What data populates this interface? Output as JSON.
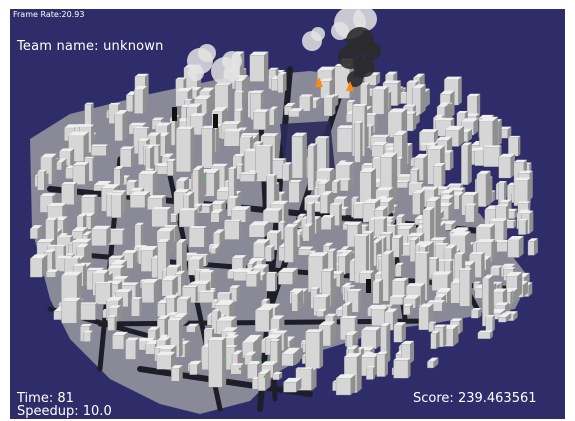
{
  "hud": {
    "frame_rate_label": "Frame Rate:",
    "frame_rate_value": "20.93",
    "team_label": "Team name:",
    "team_value": "unknown",
    "time_label": "Time:",
    "time_value": "81",
    "speedup_label": "Speedup:",
    "speedup_value": "10.0",
    "score_label": "Score:",
    "score_value": "239.463561"
  },
  "colors": {
    "sky": "#2f2c6a",
    "ground": "#9a9aa0",
    "road": "#1e1e28",
    "building_light": "#d6d6d6",
    "building_shade": "#8f8f8f",
    "smoke": "#e4e4e4",
    "dark_smoke": "#2b2b2b",
    "fire": "#ff8a10",
    "agent": "#111111"
  },
  "icons": {
    "fire": "fire-icon",
    "smoke": "smoke-icon",
    "agent": "rescue-agent-icon"
  }
}
